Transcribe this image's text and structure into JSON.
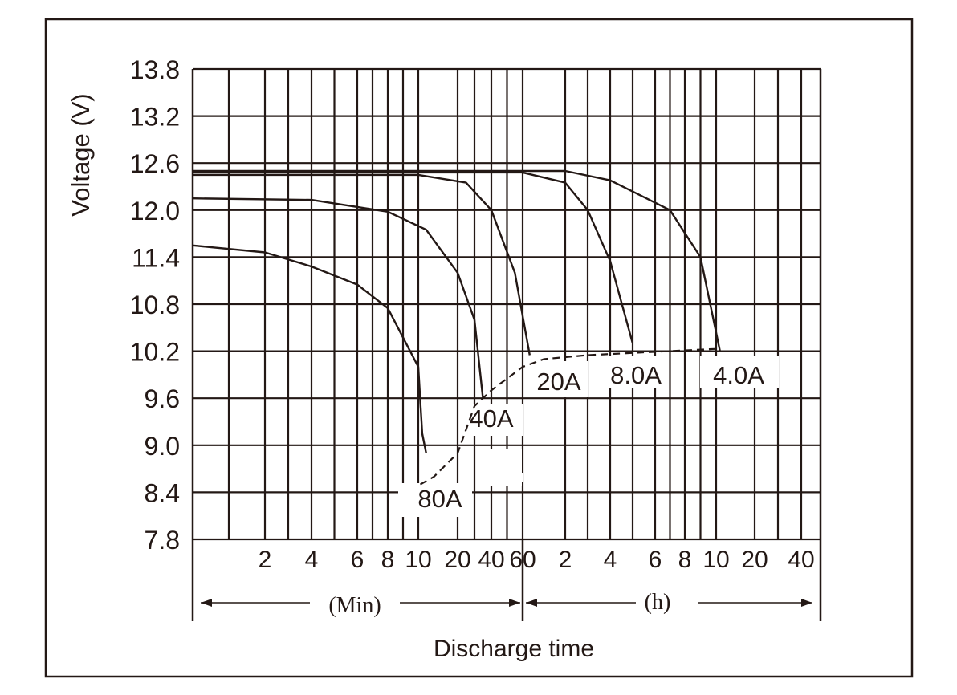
{
  "chart_data": {
    "type": "line",
    "title": "",
    "xlabel": "Discharge time",
    "ylabel": "Voltage (V)",
    "y_ticks": [
      "13.8",
      "13.2",
      "12.6",
      "12.0",
      "11.4",
      "10.8",
      "10.2",
      "9.6",
      "9.0",
      "8.4",
      "7.8"
    ],
    "ylim": [
      7.8,
      13.8
    ],
    "x_tick_labels": [
      "2",
      "4",
      "6",
      "8",
      "10",
      "20",
      "40",
      "60",
      "2",
      "4",
      "6",
      "8",
      "10",
      "20",
      "40"
    ],
    "x_unit_min": "(Min)",
    "x_unit_h": "(h)",
    "grid": true,
    "series": [
      {
        "name": "80A",
        "points": [
          [
            0,
            11.55
          ],
          [
            2,
            11.46
          ],
          [
            4,
            11.28
          ],
          [
            6,
            11.05
          ],
          [
            8,
            10.75
          ],
          [
            10,
            10.0
          ],
          [
            11,
            9.15
          ],
          [
            12,
            8.9
          ]
        ]
      },
      {
        "name": "40A",
        "points": [
          [
            0,
            12.15
          ],
          [
            4,
            12.13
          ],
          [
            8,
            11.98
          ],
          [
            12,
            11.75
          ],
          [
            20,
            11.2
          ],
          [
            30,
            10.6
          ],
          [
            35,
            9.6
          ]
        ]
      },
      {
        "name": "20A",
        "points": [
          [
            0,
            12.45
          ],
          [
            10,
            12.45
          ],
          [
            25,
            12.35
          ],
          [
            40,
            12.0
          ],
          [
            55,
            11.2
          ],
          [
            70,
            10.15
          ]
        ]
      },
      {
        "name": "8.0A",
        "points": [
          [
            0,
            12.48
          ],
          [
            60,
            12.48
          ],
          [
            120,
            12.35
          ],
          [
            180,
            12.0
          ],
          [
            240,
            11.35
          ],
          [
            300,
            10.3
          ]
        ]
      },
      {
        "name": "4.0A",
        "points": [
          [
            0,
            12.5
          ],
          [
            120,
            12.5
          ],
          [
            240,
            12.38
          ],
          [
            420,
            12.0
          ],
          [
            540,
            11.4
          ],
          [
            660,
            10.2
          ]
        ]
      }
    ],
    "end_voltage_line": [
      [
        10.5,
        8.5
      ],
      [
        14,
        8.6
      ],
      [
        20,
        8.9
      ],
      [
        30,
        9.5
      ],
      [
        40,
        9.7
      ],
      [
        60,
        10.0
      ],
      [
        90,
        10.1
      ],
      [
        180,
        10.15
      ],
      [
        600,
        10.23
      ]
    ]
  }
}
